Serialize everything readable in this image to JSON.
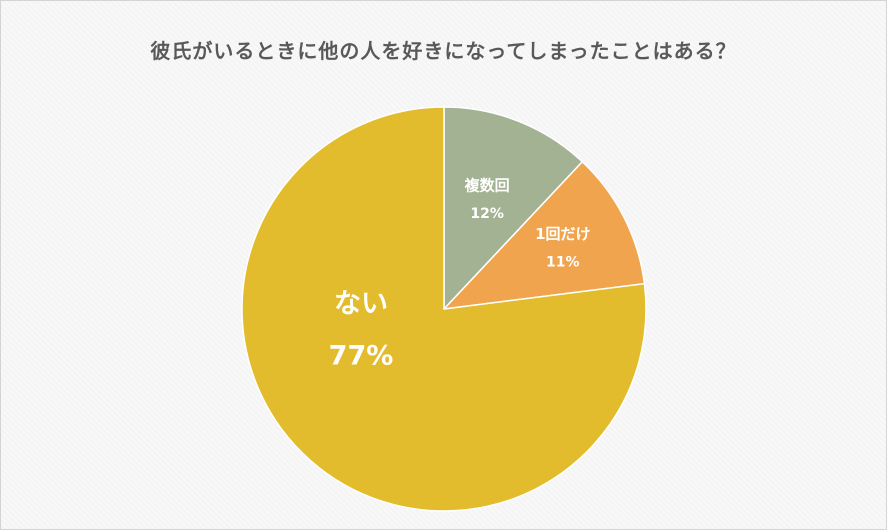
{
  "chart_data": {
    "type": "pie",
    "title": "彼氏がいるときに他の人を好きになってしまったことはある？",
    "slices": [
      {
        "label": "複数回",
        "value": 12,
        "display": "12%",
        "color": "#a4b294"
      },
      {
        "label": "1回だけ",
        "value": 11,
        "display": "11%",
        "color": "#f0a44e"
      },
      {
        "label": "ない",
        "value": 77,
        "display": "77%",
        "color": "#e2bc2c"
      }
    ],
    "start_angle_deg": 0,
    "direction": "clockwise",
    "legend": "none"
  }
}
